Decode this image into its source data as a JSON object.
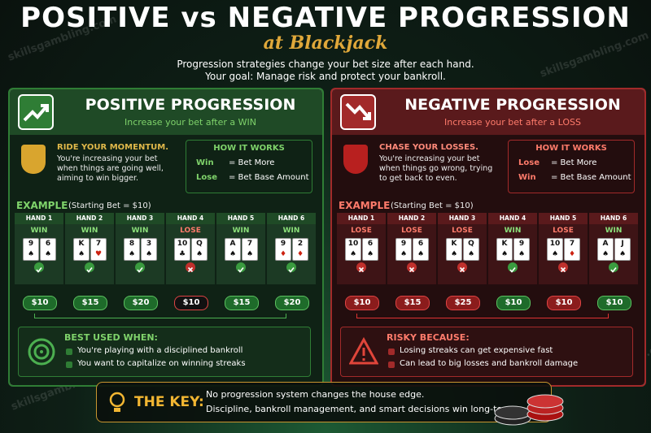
{
  "header": {
    "title": "POSITIVE vs NEGATIVE PROGRESSION",
    "subtitle": "at Blackjack",
    "intro": [
      "Progression strategies change your bet size after each hand.",
      "Your goal: Manage risk and protect your bankroll."
    ]
  },
  "watermark": "skillsgambling.com",
  "panels": [
    {
      "kind": "positive",
      "title": "POSITIVE PROGRESSION",
      "subtitle": "Increase your bet after a WIN",
      "lead": "RIDE YOUR MOMENTUM.",
      "body": "You're increasing your bet when things are going well, aiming to win bigger.",
      "how_title": "HOW IT WORKS",
      "rules": [
        {
          "label": "Win",
          "text": "= Bet More"
        },
        {
          "label": "Lose",
          "text": "= Bet Base Amount"
        }
      ],
      "example_label": "EXAMPLE",
      "example_note": "(Starting Bet = $10)",
      "hands": [
        {
          "label": "HAND 1",
          "result": "WIN",
          "cards": [
            {
              "rank": "9",
              "suit": "♠"
            },
            {
              "rank": "6",
              "suit": "♠"
            }
          ],
          "bet": "$10"
        },
        {
          "label": "HAND 2",
          "result": "WIN",
          "cards": [
            {
              "rank": "K",
              "suit": "♠"
            },
            {
              "rank": "7",
              "suit": "♥"
            }
          ],
          "bet": "$15"
        },
        {
          "label": "HAND 3",
          "result": "WIN",
          "cards": [
            {
              "rank": "8",
              "suit": "♠"
            },
            {
              "rank": "3",
              "suit": "♠"
            }
          ],
          "bet": "$20"
        },
        {
          "label": "HAND 4",
          "result": "LOSE",
          "cards": [
            {
              "rank": "10",
              "suit": "♣"
            },
            {
              "rank": "Q",
              "suit": "♠"
            }
          ],
          "bet": "$10"
        },
        {
          "label": "HAND 5",
          "result": "WIN",
          "cards": [
            {
              "rank": "A",
              "suit": "♠"
            },
            {
              "rank": "7",
              "suit": "♠"
            }
          ],
          "bet": "$15"
        },
        {
          "label": "HAND 6",
          "result": "WIN",
          "cards": [
            {
              "rank": "9",
              "suit": "♦"
            },
            {
              "rank": "2",
              "suit": "♦"
            }
          ],
          "bet": "$20"
        }
      ],
      "box_title": "BEST USED WHEN:",
      "bullets": [
        "You're playing with a disciplined bankroll",
        "You want to capitalize on winning streaks"
      ]
    },
    {
      "kind": "negative",
      "title": "NEGATIVE PROGRESSION",
      "subtitle": "Increase your bet after a LOSS",
      "lead": "CHASE YOUR LOSSES.",
      "body": "You're increasing your bet when things go wrong, trying to get back to even.",
      "how_title": "HOW IT WORKS",
      "rules": [
        {
          "label": "Lose",
          "text": "= Bet More"
        },
        {
          "label": "Win",
          "text": "= Bet Base Amount"
        }
      ],
      "example_label": "EXAMPLE",
      "example_note": "(Starting Bet = $10)",
      "hands": [
        {
          "label": "HAND 1",
          "result": "LOSE",
          "cards": [
            {
              "rank": "10",
              "suit": "♠"
            },
            {
              "rank": "6",
              "suit": "♠"
            }
          ],
          "bet": "$10"
        },
        {
          "label": "HAND 2",
          "result": "LOSE",
          "cards": [
            {
              "rank": "9",
              "suit": "♠"
            },
            {
              "rank": "6",
              "suit": "♠"
            }
          ],
          "bet": "$15"
        },
        {
          "label": "HAND 3",
          "result": "LOSE",
          "cards": [
            {
              "rank": "K",
              "suit": "♠"
            },
            {
              "rank": "Q",
              "suit": "♠"
            }
          ],
          "bet": "$25"
        },
        {
          "label": "HAND 4",
          "result": "WIN",
          "cards": [
            {
              "rank": "K",
              "suit": "♠"
            },
            {
              "rank": "9",
              "suit": "♠"
            }
          ],
          "bet": "$10"
        },
        {
          "label": "HAND 5",
          "result": "LOSE",
          "cards": [
            {
              "rank": "10",
              "suit": "♠"
            },
            {
              "rank": "7",
              "suit": "♦"
            }
          ],
          "bet": "$10"
        },
        {
          "label": "HAND 6",
          "result": "WIN",
          "cards": [
            {
              "rank": "A",
              "suit": "♠"
            },
            {
              "rank": "J",
              "suit": "♠"
            }
          ],
          "bet": "$10"
        }
      ],
      "box_title": "RISKY BECAUSE:",
      "bullets": [
        "Losing streaks can get expensive fast",
        "Can lead to big losses and bankroll damage"
      ]
    }
  ],
  "key": {
    "label": "THE KEY:",
    "lines": [
      "No progression system changes the house edge.",
      "Discipline, bankroll management, and smart decisions win long-term."
    ]
  }
}
